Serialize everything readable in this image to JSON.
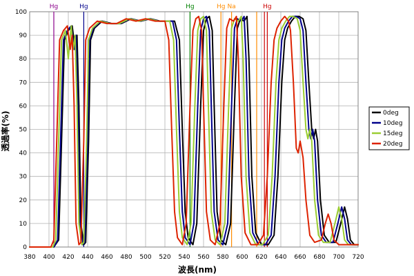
{
  "chart_data": {
    "type": "line",
    "xlabel": "波長(nm)",
    "ylabel": "透過率(%)",
    "xlim": [
      380,
      720
    ],
    "ylim": [
      0,
      100
    ],
    "x_ticks": [
      380,
      400,
      420,
      440,
      460,
      480,
      500,
      520,
      540,
      560,
      580,
      600,
      620,
      640,
      660,
      680,
      700,
      720
    ],
    "y_ticks": [
      0,
      10,
      20,
      30,
      40,
      50,
      60,
      70,
      80,
      90,
      100
    ],
    "grid": true,
    "legend_position": "right",
    "reference_lines": [
      {
        "x": 405,
        "label": "Hg",
        "color": "#8b008b"
      },
      {
        "x": 436,
        "label": "Hg",
        "color": "#00008b"
      },
      {
        "x": 546,
        "label": "Hg",
        "color": "#008000"
      },
      {
        "x": 578,
        "label": "Hg",
        "color": "#ff8c00"
      },
      {
        "x": 589,
        "label": "Na",
        "color": "#ff8c00"
      },
      {
        "x": 615,
        "label": "",
        "color": "#ff8c00"
      },
      {
        "x": 623,
        "label": "",
        "color": "#cc0000"
      },
      {
        "x": 626,
        "label": "Hg",
        "color": "#cc0000"
      }
    ],
    "series": [
      {
        "name": "0deg",
        "color": "#000000",
        "points": [
          [
            380,
            0
          ],
          [
            405,
            0
          ],
          [
            410,
            3
          ],
          [
            413,
            45
          ],
          [
            416,
            88
          ],
          [
            420,
            92
          ],
          [
            424,
            94
          ],
          [
            427,
            84
          ],
          [
            429,
            90
          ],
          [
            431,
            60
          ],
          [
            433,
            10
          ],
          [
            436,
            1
          ],
          [
            438,
            2
          ],
          [
            441,
            45
          ],
          [
            443,
            88
          ],
          [
            447,
            93
          ],
          [
            455,
            96
          ],
          [
            465,
            95
          ],
          [
            475,
            95
          ],
          [
            485,
            97
          ],
          [
            495,
            96
          ],
          [
            505,
            97
          ],
          [
            515,
            96
          ],
          [
            525,
            96
          ],
          [
            530,
            96
          ],
          [
            535,
            88
          ],
          [
            538,
            50
          ],
          [
            541,
            15
          ],
          [
            544,
            4
          ],
          [
            549,
            1
          ],
          [
            553,
            10
          ],
          [
            557,
            60
          ],
          [
            560,
            92
          ],
          [
            563,
            97
          ],
          [
            566,
            98
          ],
          [
            569,
            92
          ],
          [
            571,
            60
          ],
          [
            574,
            15
          ],
          [
            578,
            3
          ],
          [
            583,
            1
          ],
          [
            588,
            10
          ],
          [
            592,
            60
          ],
          [
            595,
            93
          ],
          [
            598,
            97
          ],
          [
            602,
            96
          ],
          [
            605,
            98
          ],
          [
            607,
            80
          ],
          [
            610,
            30
          ],
          [
            614,
            6
          ],
          [
            620,
            1
          ],
          [
            627,
            1
          ],
          [
            633,
            5
          ],
          [
            637,
            30
          ],
          [
            641,
            70
          ],
          [
            644,
            88
          ],
          [
            647,
            93
          ],
          [
            651,
            96
          ],
          [
            655,
            98
          ],
          [
            659,
            98
          ],
          [
            663,
            97
          ],
          [
            666,
            92
          ],
          [
            669,
            70
          ],
          [
            672,
            50
          ],
          [
            674,
            46
          ],
          [
            676,
            50
          ],
          [
            678,
            45
          ],
          [
            681,
            20
          ],
          [
            685,
            5
          ],
          [
            690,
            2
          ],
          [
            697,
            2
          ],
          [
            702,
            10
          ],
          [
            706,
            17
          ],
          [
            709,
            12
          ],
          [
            712,
            3
          ],
          [
            716,
            1
          ],
          [
            720,
            1
          ]
        ]
      },
      {
        "name": "10deg",
        "color": "#00008b",
        "points": [
          [
            380,
            0
          ],
          [
            405,
            0
          ],
          [
            409,
            3
          ],
          [
            412,
            45
          ],
          [
            415,
            88
          ],
          [
            419,
            92
          ],
          [
            423,
            94
          ],
          [
            426,
            84
          ],
          [
            428,
            90
          ],
          [
            430,
            60
          ],
          [
            432,
            10
          ],
          [
            435,
            1
          ],
          [
            437,
            2
          ],
          [
            440,
            45
          ],
          [
            442,
            88
          ],
          [
            446,
            93
          ],
          [
            454,
            96
          ],
          [
            464,
            95
          ],
          [
            474,
            95
          ],
          [
            484,
            97
          ],
          [
            494,
            96
          ],
          [
            504,
            97
          ],
          [
            514,
            96
          ],
          [
            523,
            96
          ],
          [
            528,
            96
          ],
          [
            532,
            88
          ],
          [
            535,
            50
          ],
          [
            538,
            15
          ],
          [
            541,
            4
          ],
          [
            546,
            1
          ],
          [
            550,
            10
          ],
          [
            554,
            60
          ],
          [
            557,
            92
          ],
          [
            560,
            97
          ],
          [
            563,
            98
          ],
          [
            566,
            92
          ],
          [
            568,
            60
          ],
          [
            571,
            15
          ],
          [
            575,
            3
          ],
          [
            580,
            1
          ],
          [
            585,
            10
          ],
          [
            589,
            60
          ],
          [
            592,
            93
          ],
          [
            595,
            97
          ],
          [
            599,
            96
          ],
          [
            602,
            98
          ],
          [
            604,
            80
          ],
          [
            607,
            30
          ],
          [
            611,
            6
          ],
          [
            617,
            1
          ],
          [
            624,
            1
          ],
          [
            630,
            5
          ],
          [
            634,
            30
          ],
          [
            638,
            70
          ],
          [
            641,
            88
          ],
          [
            644,
            93
          ],
          [
            648,
            96
          ],
          [
            652,
            98
          ],
          [
            656,
            98
          ],
          [
            660,
            97
          ],
          [
            663,
            92
          ],
          [
            666,
            70
          ],
          [
            669,
            50
          ],
          [
            671,
            46
          ],
          [
            673,
            50
          ],
          [
            675,
            45
          ],
          [
            678,
            20
          ],
          [
            682,
            5
          ],
          [
            687,
            2
          ],
          [
            694,
            2
          ],
          [
            699,
            10
          ],
          [
            703,
            17
          ],
          [
            706,
            12
          ],
          [
            709,
            3
          ],
          [
            713,
            1
          ],
          [
            720,
            1
          ]
        ]
      },
      {
        "name": "15deg",
        "color": "#9acd32",
        "points": [
          [
            380,
            0
          ],
          [
            404,
            0
          ],
          [
            407,
            3
          ],
          [
            410,
            45
          ],
          [
            413,
            88
          ],
          [
            417,
            92
          ],
          [
            420,
            80
          ],
          [
            423,
            94
          ],
          [
            425,
            84
          ],
          [
            427,
            90
          ],
          [
            429,
            60
          ],
          [
            431,
            10
          ],
          [
            434,
            1
          ],
          [
            436,
            2
          ],
          [
            439,
            45
          ],
          [
            441,
            88
          ],
          [
            445,
            93
          ],
          [
            453,
            96
          ],
          [
            463,
            95
          ],
          [
            473,
            95
          ],
          [
            483,
            97
          ],
          [
            493,
            96
          ],
          [
            503,
            97
          ],
          [
            513,
            96
          ],
          [
            520,
            96
          ],
          [
            525,
            96
          ],
          [
            529,
            88
          ],
          [
            532,
            50
          ],
          [
            535,
            15
          ],
          [
            538,
            4
          ],
          [
            543,
            1
          ],
          [
            547,
            10
          ],
          [
            551,
            60
          ],
          [
            554,
            92
          ],
          [
            557,
            97
          ],
          [
            560,
            98
          ],
          [
            563,
            92
          ],
          [
            565,
            60
          ],
          [
            568,
            15
          ],
          [
            572,
            3
          ],
          [
            577,
            1
          ],
          [
            582,
            10
          ],
          [
            586,
            60
          ],
          [
            589,
            93
          ],
          [
            592,
            97
          ],
          [
            596,
            96
          ],
          [
            599,
            98
          ],
          [
            601,
            80
          ],
          [
            604,
            30
          ],
          [
            608,
            6
          ],
          [
            614,
            1
          ],
          [
            621,
            1
          ],
          [
            627,
            5
          ],
          [
            631,
            30
          ],
          [
            635,
            70
          ],
          [
            638,
            88
          ],
          [
            641,
            93
          ],
          [
            645,
            96
          ],
          [
            649,
            98
          ],
          [
            653,
            98
          ],
          [
            657,
            97
          ],
          [
            660,
            92
          ],
          [
            663,
            70
          ],
          [
            666,
            50
          ],
          [
            668,
            46
          ],
          [
            670,
            50
          ],
          [
            672,
            45
          ],
          [
            675,
            20
          ],
          [
            679,
            5
          ],
          [
            684,
            2
          ],
          [
            691,
            2
          ],
          [
            696,
            10
          ],
          [
            700,
            17
          ],
          [
            703,
            12
          ],
          [
            706,
            3
          ],
          [
            710,
            1
          ],
          [
            720,
            1
          ]
        ]
      },
      {
        "name": "20deg",
        "color": "#dd2200",
        "points": [
          [
            380,
            0
          ],
          [
            402,
            0
          ],
          [
            405,
            3
          ],
          [
            408,
            45
          ],
          [
            411,
            88
          ],
          [
            415,
            92
          ],
          [
            419,
            94
          ],
          [
            422,
            84
          ],
          [
            424,
            90
          ],
          [
            426,
            60
          ],
          [
            428,
            10
          ],
          [
            431,
            1
          ],
          [
            433,
            2
          ],
          [
            436,
            45
          ],
          [
            438,
            88
          ],
          [
            442,
            93
          ],
          [
            450,
            96
          ],
          [
            460,
            95
          ],
          [
            470,
            95
          ],
          [
            480,
            97
          ],
          [
            490,
            96
          ],
          [
            500,
            97
          ],
          [
            510,
            96
          ],
          [
            515,
            96
          ],
          [
            520,
            96
          ],
          [
            524,
            88
          ],
          [
            527,
            50
          ],
          [
            530,
            15
          ],
          [
            533,
            4
          ],
          [
            538,
            1
          ],
          [
            542,
            10
          ],
          [
            546,
            60
          ],
          [
            549,
            92
          ],
          [
            552,
            97
          ],
          [
            555,
            98
          ],
          [
            558,
            92
          ],
          [
            560,
            60
          ],
          [
            563,
            15
          ],
          [
            567,
            3
          ],
          [
            572,
            1
          ],
          [
            577,
            10
          ],
          [
            581,
            60
          ],
          [
            584,
            93
          ],
          [
            587,
            97
          ],
          [
            591,
            96
          ],
          [
            594,
            98
          ],
          [
            596,
            80
          ],
          [
            599,
            30
          ],
          [
            603,
            6
          ],
          [
            609,
            1
          ],
          [
            616,
            1
          ],
          [
            622,
            5
          ],
          [
            626,
            30
          ],
          [
            630,
            70
          ],
          [
            633,
            88
          ],
          [
            636,
            93
          ],
          [
            640,
            96
          ],
          [
            644,
            98
          ],
          [
            648,
            96
          ],
          [
            650,
            92
          ],
          [
            653,
            70
          ],
          [
            656,
            42
          ],
          [
            658,
            40
          ],
          [
            660,
            45
          ],
          [
            663,
            38
          ],
          [
            666,
            20
          ],
          [
            670,
            5
          ],
          [
            675,
            2
          ],
          [
            682,
            3
          ],
          [
            686,
            10
          ],
          [
            689,
            14
          ],
          [
            692,
            10
          ],
          [
            695,
            3
          ],
          [
            700,
            1
          ],
          [
            720,
            1
          ]
        ]
      }
    ]
  }
}
